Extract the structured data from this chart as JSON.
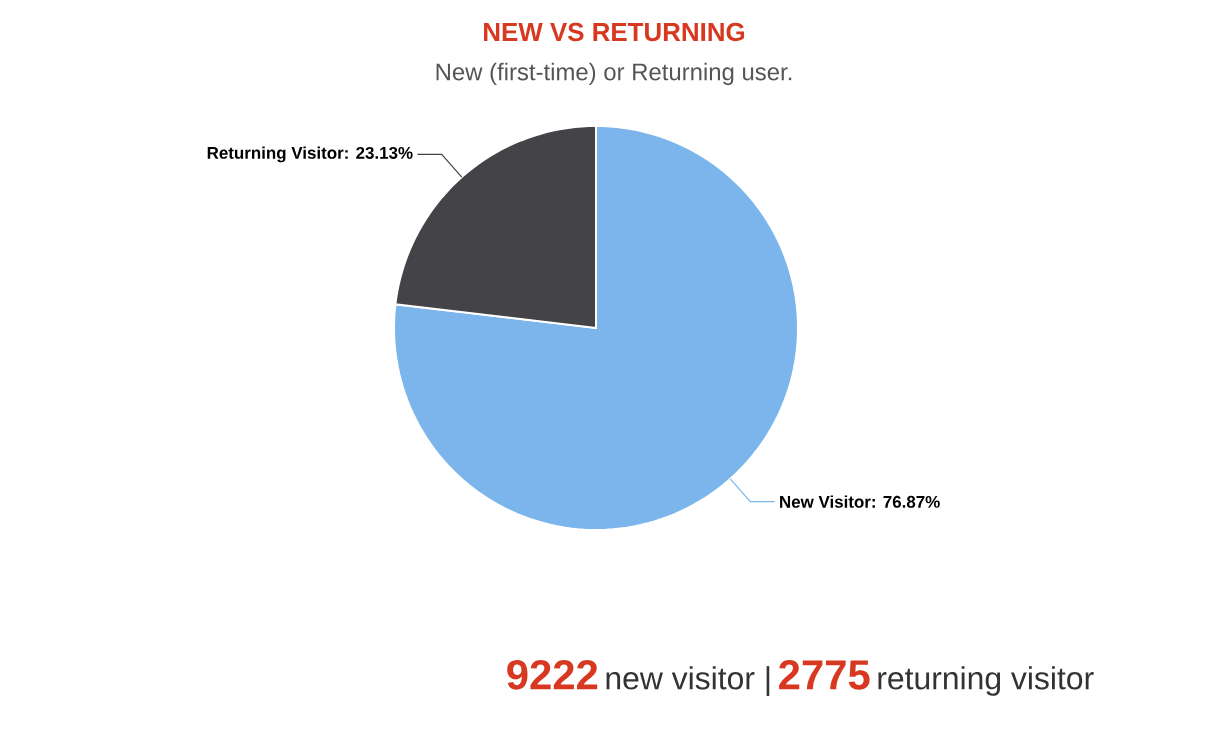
{
  "chart_data": {
    "type": "pie",
    "title": "NEW VS RETURNING",
    "subtitle": "New (first-time) or Returning user.",
    "categories": [
      null,
      null
    ],
    "values": [
      76.87,
      23.13
    ],
    "colors": [
      "#7cb5ec",
      "#434348"
    ],
    "value_labels": [
      "New Visitor: 76.87%",
      "Returning Visitor: 23.13%"
    ],
    "annotations": [
      "9222",
      "new visitor |",
      "2775",
      "returning visitor"
    ]
  }
}
